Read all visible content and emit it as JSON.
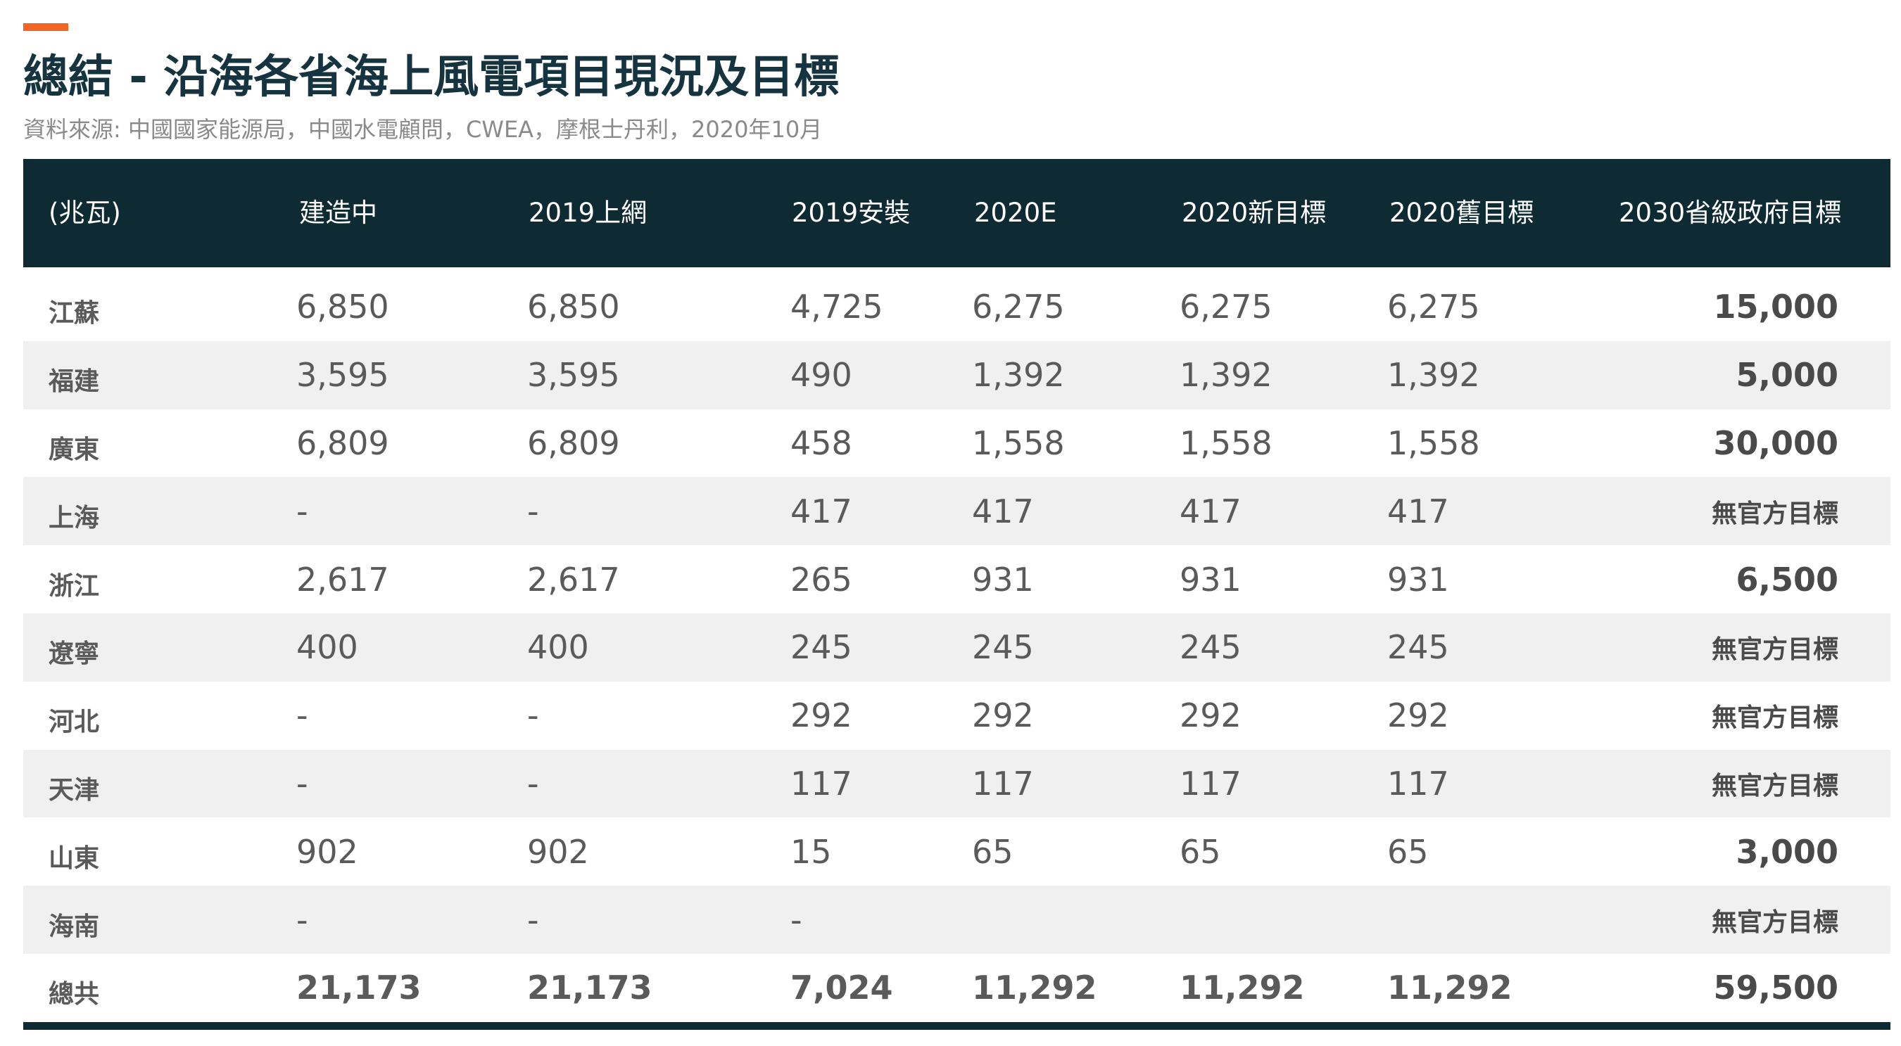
{
  "title": "總結 - 沿海各省海上風電項目現況及目標",
  "source": "資料來源: 中國國家能源局，中國水電顧問，CWEA，摩根士丹利，2020年10月",
  "colors": {
    "accent": "#f26522",
    "header_bg": "#0e2a33",
    "title": "#16343f",
    "shaded_row": "#f0f0f0"
  },
  "table": {
    "headers": [
      "(兆瓦)",
      "建造中",
      "2019上網",
      "2019安裝",
      "2020E",
      "2020新目標",
      "2020舊目標",
      "2030省級政府目標"
    ],
    "rows": [
      [
        "江蘇",
        "6,850",
        "6,850",
        "4,725",
        "6,275",
        "6,275",
        "6,275",
        "15,000"
      ],
      [
        "福建",
        "3,595",
        "3,595",
        "490",
        "1,392",
        "1,392",
        "1,392",
        "5,000"
      ],
      [
        "廣東",
        "6,809",
        "6,809",
        "458",
        "1,558",
        "1,558",
        "1,558",
        "30,000"
      ],
      [
        "上海",
        "-",
        "-",
        "417",
        "417",
        "417",
        "417",
        "無官方目標"
      ],
      [
        "浙江",
        "2,617",
        "2,617",
        "265",
        "931",
        "931",
        "931",
        "6,500"
      ],
      [
        "遼寧",
        "400",
        "400",
        "245",
        "245",
        "245",
        "245",
        "無官方目標"
      ],
      [
        "河北",
        "-",
        "-",
        "292",
        "292",
        "292",
        "292",
        "無官方目標"
      ],
      [
        "天津",
        "-",
        "-",
        "117",
        "117",
        "117",
        "117",
        "無官方目標"
      ],
      [
        "山東",
        "902",
        "902",
        "15",
        "65",
        "65",
        "65",
        "3,000"
      ],
      [
        "海南",
        "-",
        "-",
        "-",
        "",
        "",
        "",
        "無官方目標"
      ],
      [
        "總共",
        "21,173",
        "21,173",
        "7,024",
        "11,292",
        "11,292",
        "11,292",
        "59,500"
      ]
    ]
  }
}
